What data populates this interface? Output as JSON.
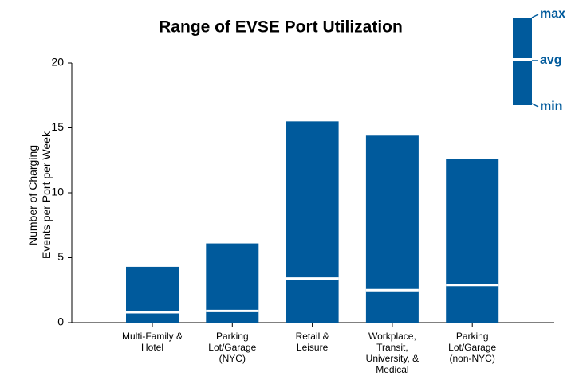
{
  "chart_data": {
    "type": "range",
    "title": "Range of EVSE Port Utilization",
    "y_label": "Number of Charging\nEvents per Port per Week",
    "categories": [
      "Multi-Family &\nHotel",
      "Parking\nLot/Garage\n(NYC)",
      "Retail &\nLeisure",
      "Workplace,\nTransit,\nUniversity, &\nMedical",
      "Parking\nLot/Garage\n(non-NYC)"
    ],
    "series": [
      {
        "name": "max",
        "values": [
          4.3,
          6.1,
          15.5,
          14.4,
          12.6
        ]
      },
      {
        "name": "avg",
        "values": [
          0.8,
          0.9,
          3.4,
          2.5,
          2.9
        ]
      },
      {
        "name": "min",
        "values": [
          0,
          0,
          0,
          0,
          0
        ]
      }
    ],
    "color": "#005a9c",
    "ylim": [
      0,
      20
    ],
    "yticks": [
      0,
      5,
      10,
      15,
      20
    ]
  }
}
